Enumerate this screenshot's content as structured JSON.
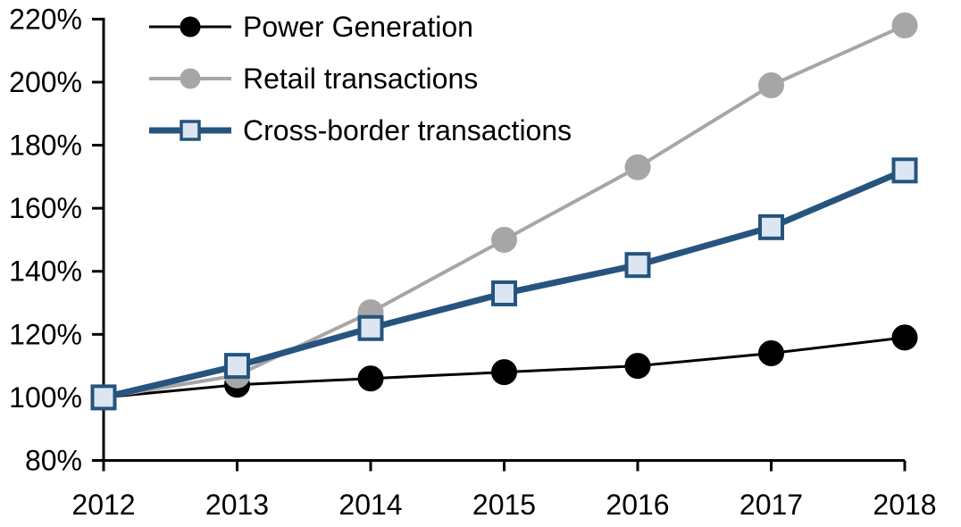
{
  "chart_data": {
    "type": "line",
    "title": "",
    "xlabel": "",
    "ylabel": "",
    "x": [
      2012,
      2013,
      2014,
      2015,
      2016,
      2017,
      2018
    ],
    "xtick_labels": [
      "2012",
      "2013",
      "2014",
      "2015",
      "2016",
      "2017",
      "2018"
    ],
    "ylim": [
      80,
      220
    ],
    "ytick_step": 20,
    "ytick_labels": [
      "80%",
      "100%",
      "120%",
      "140%",
      "160%",
      "180%",
      "200%",
      "220%"
    ],
    "grid": false,
    "legend_position": "top-left-inside",
    "series": [
      {
        "name": "Power Generation",
        "values": [
          100,
          104,
          106,
          108,
          110,
          114,
          119
        ],
        "line_color": "#000000",
        "line_width": 3,
        "marker": "circle",
        "marker_fill": "#000000",
        "marker_stroke": "#000000"
      },
      {
        "name": "Retail transactions",
        "values": [
          100,
          107,
          127,
          150,
          173,
          199,
          218
        ],
        "line_color": "#a6a6a6",
        "line_width": 4,
        "marker": "circle",
        "marker_fill": "#a6a6a6",
        "marker_stroke": "#a6a6a6"
      },
      {
        "name": "Cross-border transactions",
        "values": [
          100,
          110,
          122,
          133,
          142,
          154,
          172
        ],
        "line_color": "#26547f",
        "line_width": 7,
        "marker": "square",
        "marker_fill": "#dce6f2",
        "marker_stroke": "#26547f"
      }
    ]
  }
}
